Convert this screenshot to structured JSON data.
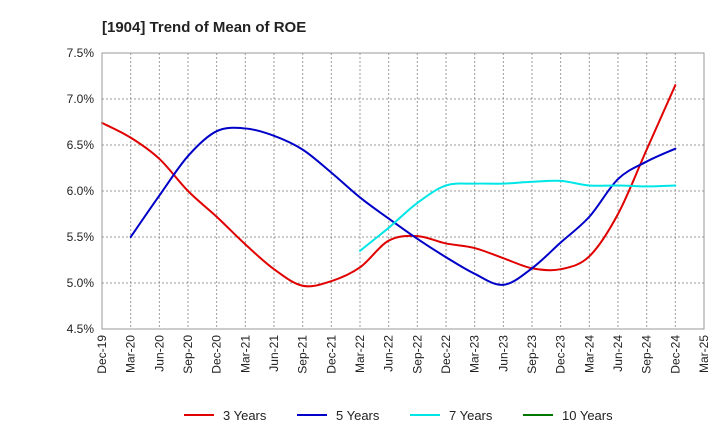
{
  "chart_data": {
    "type": "line",
    "title": "[1904]  Trend of Mean of ROE",
    "xlabel": "",
    "ylabel": "",
    "grid": true,
    "legend_position": "bottom",
    "y_unit": "%",
    "ylim": [
      4.5,
      7.5
    ],
    "yticks": [
      "4.5%",
      "5.0%",
      "5.5%",
      "6.0%",
      "6.5%",
      "7.0%",
      "7.5%"
    ],
    "x_categories": [
      "Dec-19",
      "Mar-20",
      "Jun-20",
      "Sep-20",
      "Dec-20",
      "Mar-21",
      "Jun-21",
      "Sep-21",
      "Dec-21",
      "Mar-22",
      "Jun-22",
      "Sep-22",
      "Dec-22",
      "Mar-23",
      "Jun-23",
      "Sep-23",
      "Dec-23",
      "Mar-24",
      "Jun-24",
      "Sep-24",
      "Dec-24",
      "Mar-25"
    ],
    "series": [
      {
        "name": "3 Years",
        "color": "#e00000",
        "start_index": 0,
        "values": [
          6.74,
          6.58,
          6.35,
          6.0,
          5.72,
          5.42,
          5.15,
          4.97,
          5.02,
          5.17,
          5.46,
          5.51,
          5.43,
          5.38,
          5.27,
          5.16,
          5.15,
          5.29,
          5.75,
          6.45,
          7.15
        ]
      },
      {
        "name": "5 Years",
        "color": "#0000c8",
        "start_index": 1,
        "values": [
          5.5,
          5.95,
          6.38,
          6.65,
          6.68,
          6.6,
          6.45,
          6.2,
          5.93,
          5.7,
          5.48,
          5.28,
          5.1,
          4.98,
          5.16,
          5.44,
          5.72,
          6.13,
          6.32,
          6.46
        ]
      },
      {
        "name": "7 Years",
        "color": "#00e6e6",
        "start_index": 9,
        "values": [
          5.35,
          5.6,
          5.87,
          6.06,
          6.08,
          6.08,
          6.1,
          6.11,
          6.06,
          6.06,
          6.05,
          6.06
        ]
      },
      {
        "name": "10 Years",
        "color": "#007800",
        "start_index": 0,
        "values": []
      }
    ]
  }
}
